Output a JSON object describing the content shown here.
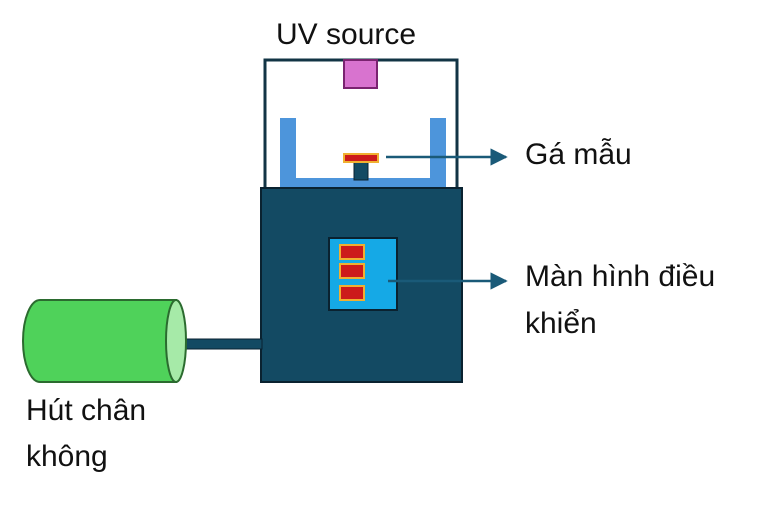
{
  "labels": {
    "uv_source": "UV source",
    "sample_holder": "Gá mẫu",
    "control_screen_line1": "Màn hình điều",
    "control_screen_line2": "khiển",
    "vacuum_line1": "Hút chân",
    "vacuum_line2": "không"
  },
  "colors": {
    "housing": "#134a63",
    "housing_edge": "#0a2230",
    "frame_outline": "#123445",
    "uv_lamp": "#d873cf",
    "tray": "#4d95db",
    "screen": "#15a9e6",
    "screen_button": "#cc1b1b",
    "button_border": "#f0b030",
    "sample_plate": "#cc1b1b",
    "pump": "#4fd25a",
    "pump_face": "#a6eaa8",
    "arrow": "#1a5a78"
  }
}
